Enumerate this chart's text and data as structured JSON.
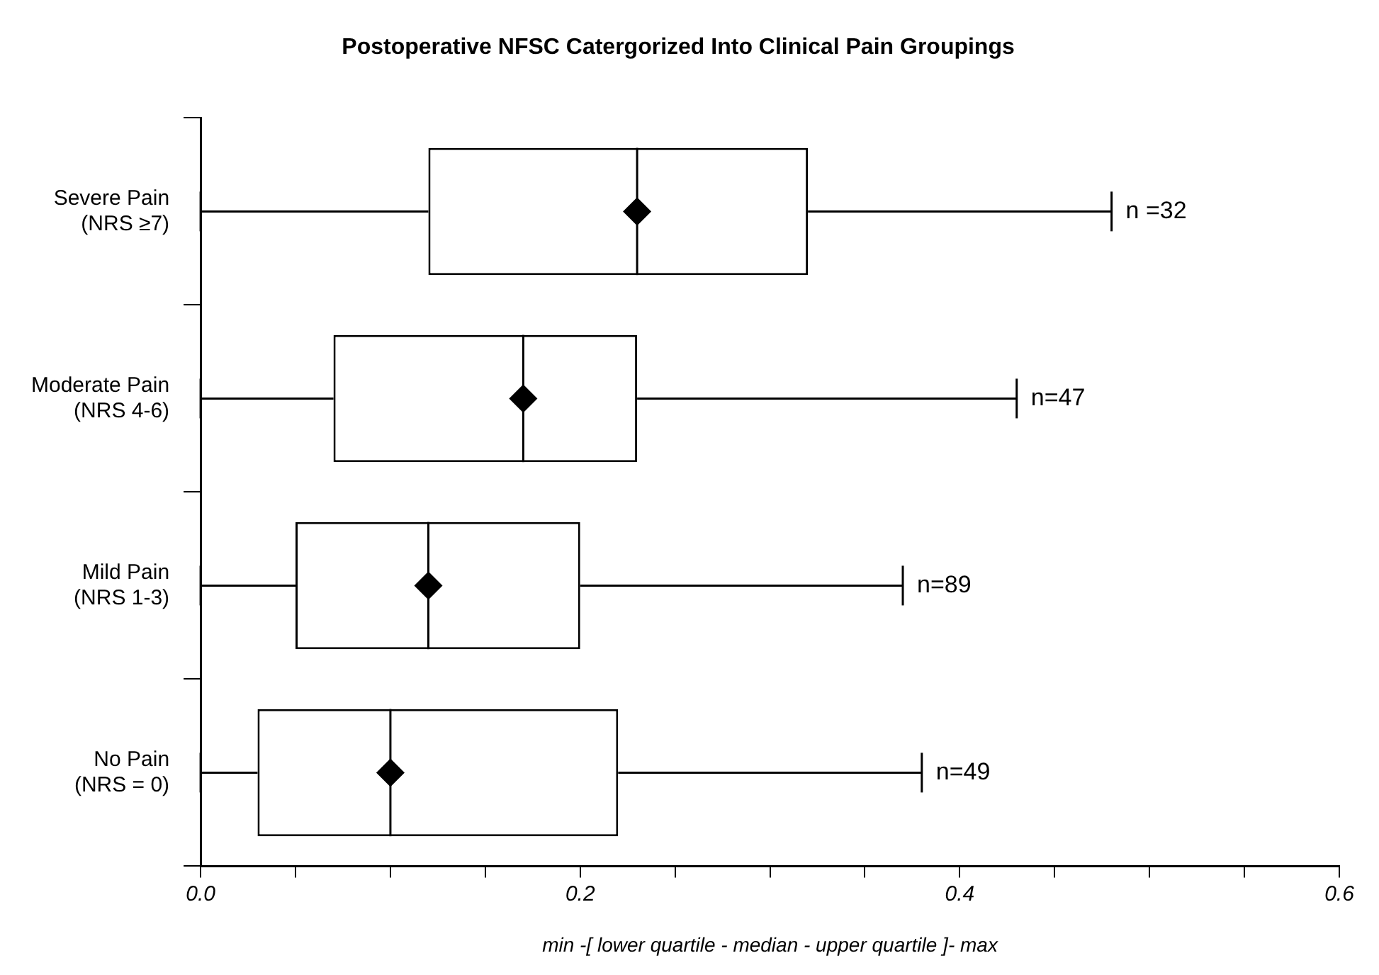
{
  "chart_data": {
    "type": "box",
    "title": "Postoperative NFSC Catergorized Into Clinical Pain Groupings",
    "xlabel": "min -[ lower quartile - median - upper quartile ]- max",
    "orientation": "horizontal",
    "categories": [
      "Severe Pain\n(NRS ≥7)",
      "Moderate Pain\n(NRS 4-6)",
      "Mild Pain\n(NRS 1-3)",
      "No Pain\n(NRS = 0)"
    ],
    "boxes": [
      {
        "low": 0.0,
        "q1": 0.12,
        "median": 0.23,
        "q3": 0.32,
        "high": 0.48,
        "mean": 0.23
      },
      {
        "low": 0.0,
        "q1": 0.07,
        "median": 0.17,
        "q3": 0.23,
        "high": 0.43,
        "mean": 0.17
      },
      {
        "low": 0.0,
        "q1": 0.05,
        "median": 0.12,
        "q3": 0.2,
        "high": 0.37,
        "mean": 0.12
      },
      {
        "low": 0.0,
        "q1": 0.03,
        "median": 0.1,
        "q3": 0.22,
        "high": 0.38,
        "mean": 0.1
      }
    ],
    "xlim": [
      0,
      0.6
    ],
    "xticks": [
      {
        "value": 0,
        "label": "0.0"
      },
      {
        "value": 0.05,
        "label": null
      },
      {
        "value": 0.1,
        "label": null
      },
      {
        "value": 0.15,
        "label": null
      },
      {
        "value": 0.2,
        "label": "0.2"
      },
      {
        "value": 0.25,
        "label": null
      },
      {
        "value": 0.3,
        "label": null
      },
      {
        "value": 0.35,
        "label": null
      },
      {
        "value": 0.4,
        "label": "0.4"
      },
      {
        "value": 0.45,
        "label": null
      },
      {
        "value": 0.5,
        "label": null
      },
      {
        "value": 0.55,
        "label": null
      },
      {
        "value": 0.6,
        "label": "0.6"
      }
    ],
    "marker": "diamond",
    "grid": false,
    "legend": false,
    "annotations": [
      {
        "text": "n =32",
        "x": 0.48,
        "y": "Severe Pain\n(NRS ≥7)"
      },
      {
        "text": "n=47",
        "x": 0.43,
        "y": "Moderate Pain\n(NRS 4-6)"
      },
      {
        "text": "n=89",
        "x": 0.37,
        "y": "Mild Pain\n(NRS 1-3)"
      },
      {
        "text": "n=49",
        "x": 0.38,
        "y": "No Pain\n(NRS = 0)"
      }
    ]
  }
}
